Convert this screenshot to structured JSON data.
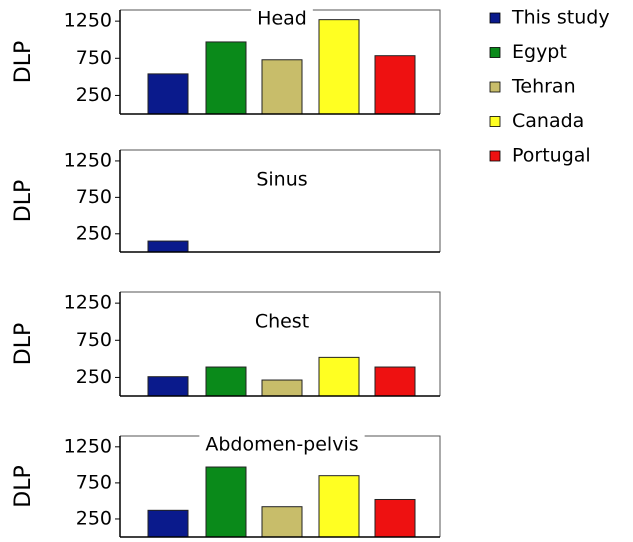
{
  "legend": {
    "names": [
      "This study",
      "Egypt",
      "Tehran",
      "Canada",
      "Portugal"
    ],
    "colors": [
      "#0a1a8c",
      "#0a8a1a",
      "#c8bd6a",
      "#ffff22",
      "#ee1111"
    ]
  },
  "chart_data": [
    {
      "type": "bar",
      "title": "Head",
      "ylabel": "DLP",
      "values": [
        540,
        970,
        730,
        1270,
        785
      ],
      "ylim": [
        0,
        1400
      ],
      "yticks": [
        250,
        750,
        1250
      ]
    },
    {
      "type": "bar",
      "title": "Sinus",
      "ylabel": "DLP",
      "values": [
        150,
        null,
        null,
        null,
        null
      ],
      "ylim": [
        0,
        1400
      ],
      "yticks": [
        250,
        750,
        1250
      ]
    },
    {
      "type": "bar",
      "title": "Chest",
      "ylabel": "DLP",
      "values": [
        260,
        390,
        215,
        520,
        390
      ],
      "ylim": [
        0,
        1400
      ],
      "yticks": [
        250,
        750,
        1250
      ]
    },
    {
      "type": "bar",
      "title": "Abdomen-pelvis",
      "ylabel": "DLP",
      "values": [
        370,
        970,
        420,
        850,
        520
      ],
      "ylim": [
        0,
        1400
      ],
      "yticks": [
        250,
        750,
        1250
      ]
    }
  ]
}
